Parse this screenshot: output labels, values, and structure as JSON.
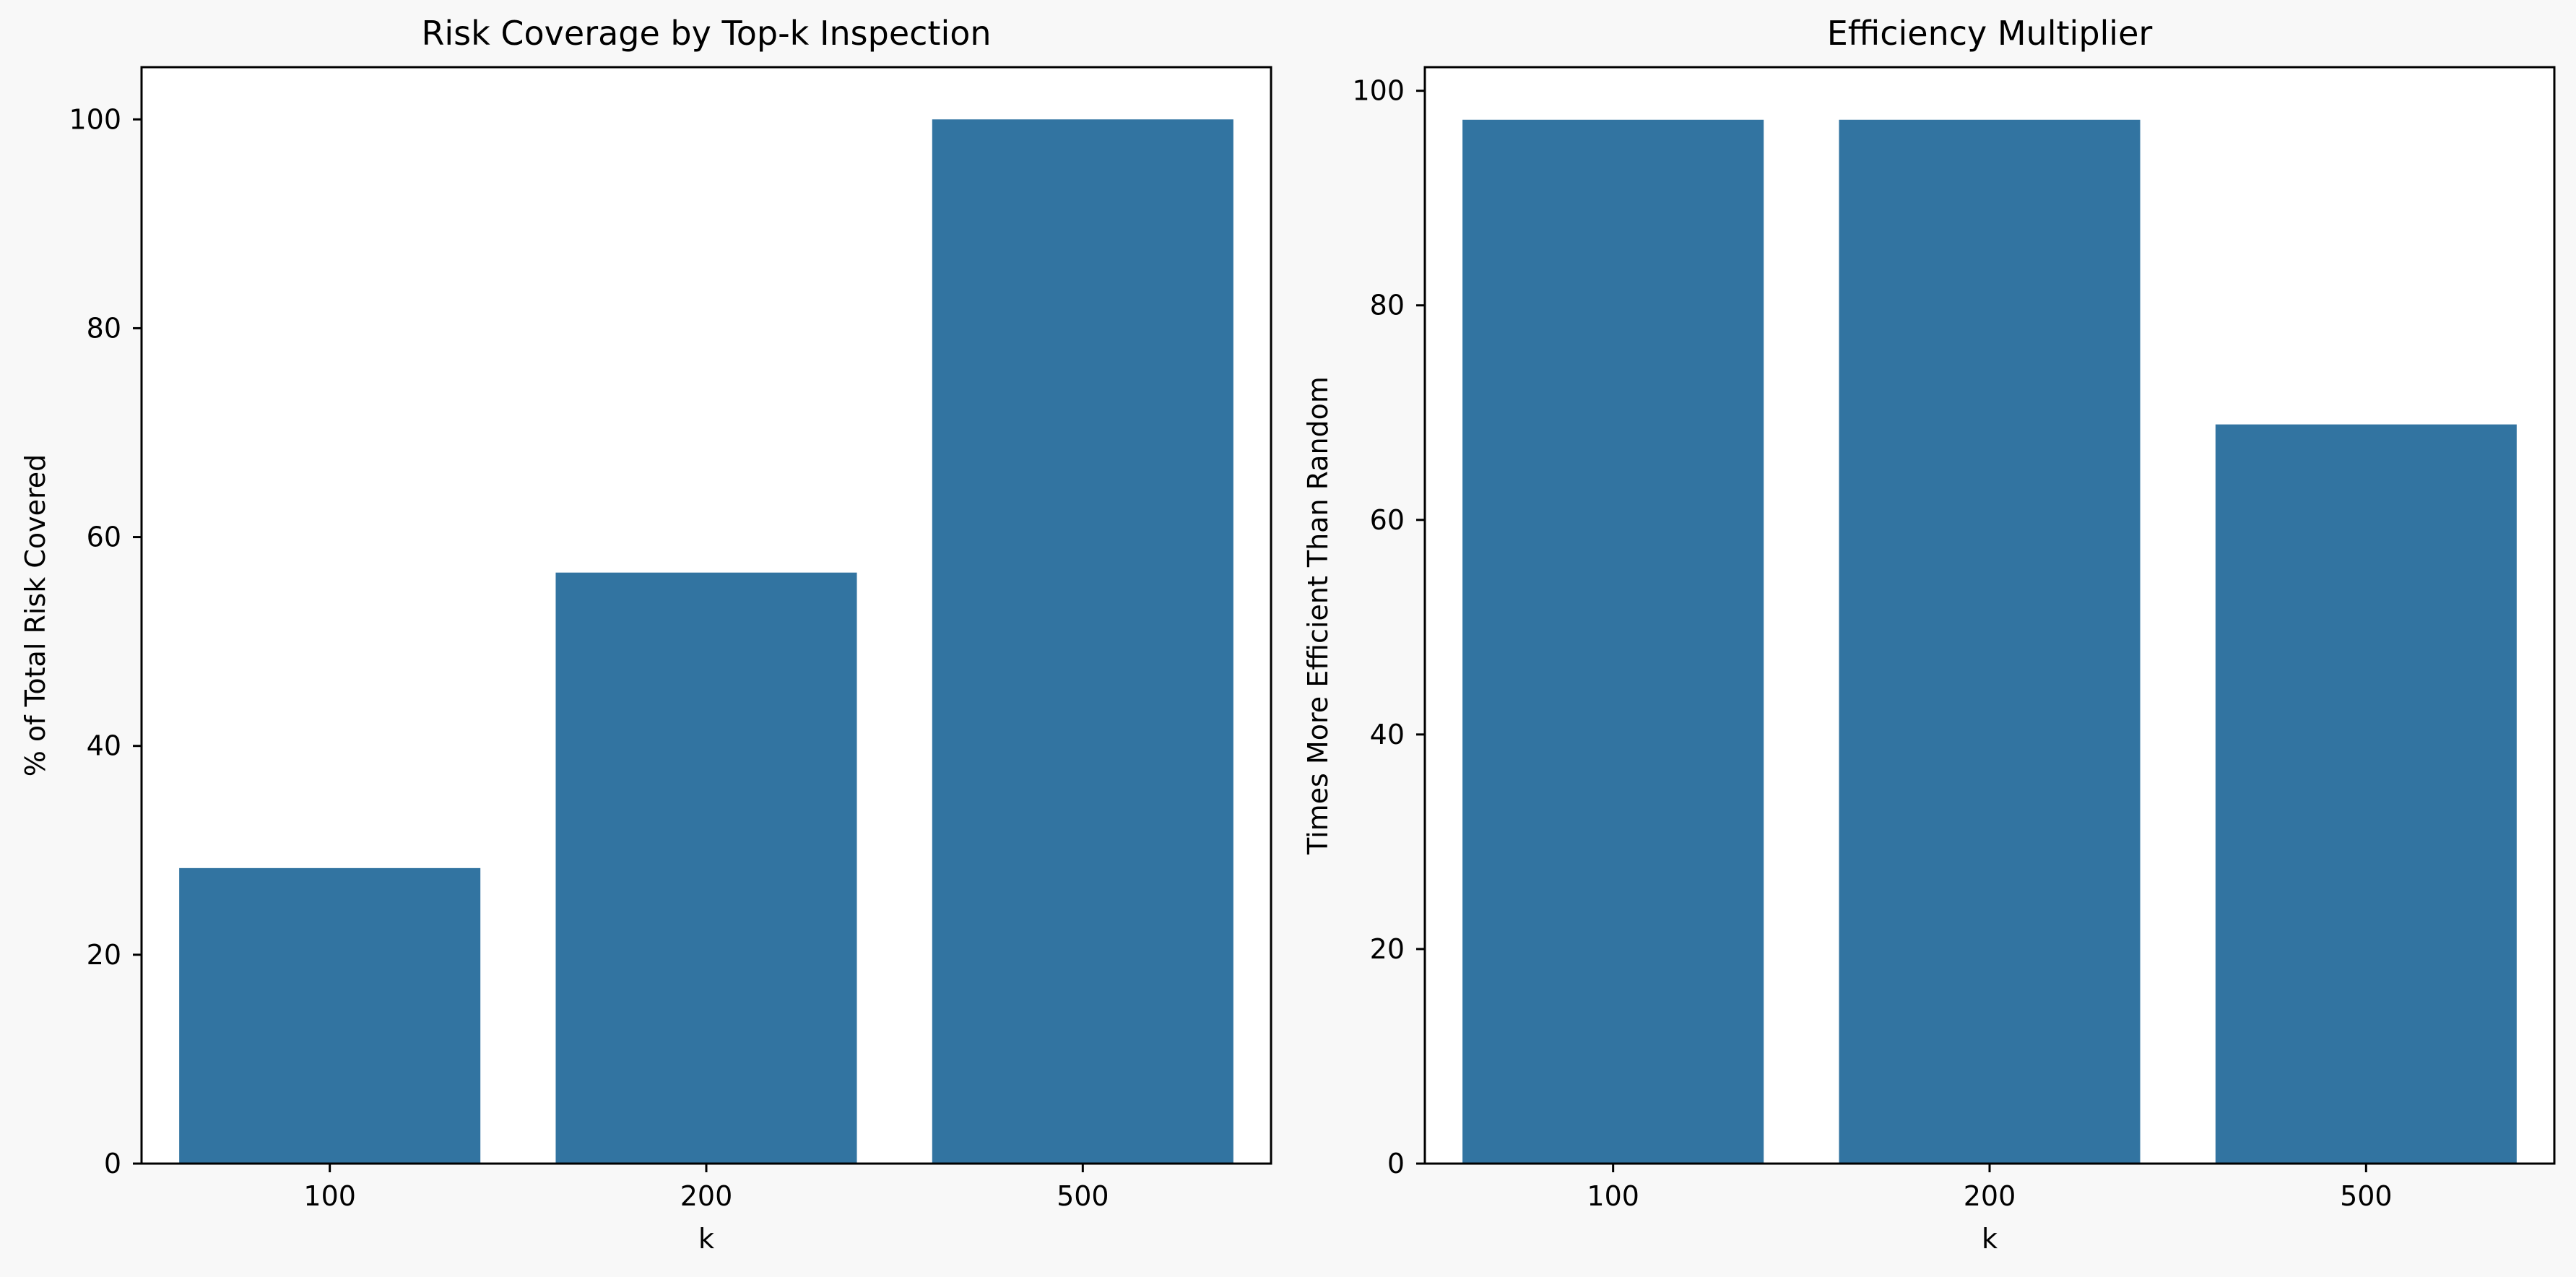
{
  "colors": {
    "figure_background": "#f8f8f8",
    "axes_background": "#ffffff",
    "bar": "#3274a1",
    "axis_line": "#000000"
  },
  "chart_data": [
    {
      "type": "bar",
      "title": "Risk Coverage by Top-k Inspection",
      "xlabel": "k",
      "ylabel": "% of Total Risk Covered",
      "categories": [
        "100",
        "200",
        "500"
      ],
      "values": [
        28.3,
        56.6,
        100
      ],
      "yticks": [
        0,
        20,
        40,
        60,
        80,
        100
      ],
      "ylim": [
        0,
        105
      ],
      "grid": false,
      "legend": "none"
    },
    {
      "type": "bar",
      "title": "Efficiency Multiplier",
      "xlabel": "k",
      "ylabel": "Times More Efficient Than Random",
      "categories": [
        "100",
        "200",
        "500"
      ],
      "values": [
        97.3,
        97.3,
        68.9
      ],
      "yticks": [
        0,
        20,
        40,
        60,
        80,
        100
      ],
      "ylim": [
        0,
        102.2
      ],
      "grid": false,
      "legend": "none"
    }
  ]
}
